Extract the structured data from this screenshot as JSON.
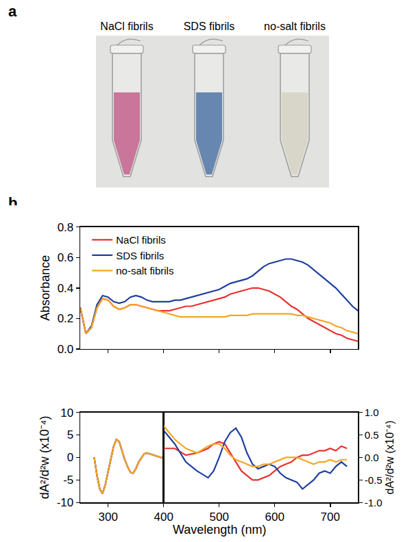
{
  "panel_a": {
    "letter": "a",
    "labels": [
      "NaCl fibrils",
      "SDS fibrils",
      "no-salt fibrils"
    ],
    "colors": [
      "#b2386e",
      "#22518f",
      "#c9c4b3"
    ]
  },
  "panel_b": {
    "letter": "b"
  },
  "chart_data": [
    {
      "type": "line",
      "ylabel": "Absorbance",
      "x": [
        250,
        260,
        270,
        280,
        290,
        300,
        310,
        320,
        330,
        340,
        350,
        360,
        370,
        380,
        390,
        400,
        410,
        420,
        430,
        440,
        450,
        460,
        470,
        480,
        490,
        500,
        510,
        520,
        530,
        540,
        550,
        560,
        570,
        580,
        590,
        600,
        610,
        620,
        630,
        640,
        650,
        660,
        670,
        680,
        690,
        700,
        710,
        720,
        730,
        740,
        750
      ],
      "series": [
        {
          "name": "NaCl fibrils",
          "color": "#e8312f",
          "values": [
            0.27,
            0.1,
            0.14,
            0.27,
            0.33,
            0.32,
            0.28,
            0.26,
            0.27,
            0.29,
            0.29,
            0.28,
            0.27,
            0.26,
            0.25,
            0.25,
            0.25,
            0.26,
            0.27,
            0.28,
            0.28,
            0.29,
            0.3,
            0.31,
            0.32,
            0.33,
            0.34,
            0.36,
            0.37,
            0.38,
            0.39,
            0.4,
            0.4,
            0.39,
            0.38,
            0.36,
            0.34,
            0.31,
            0.28,
            0.26,
            0.23,
            0.2,
            0.18,
            0.16,
            0.14,
            0.12,
            0.1,
            0.09,
            0.07,
            0.06,
            0.05
          ]
        },
        {
          "name": "SDS fibrils",
          "color": "#1f3f9e",
          "values": [
            0.27,
            0.1,
            0.15,
            0.29,
            0.35,
            0.34,
            0.31,
            0.3,
            0.31,
            0.34,
            0.35,
            0.34,
            0.32,
            0.31,
            0.31,
            0.31,
            0.31,
            0.32,
            0.32,
            0.33,
            0.34,
            0.35,
            0.36,
            0.37,
            0.38,
            0.39,
            0.41,
            0.43,
            0.44,
            0.45,
            0.46,
            0.48,
            0.51,
            0.54,
            0.56,
            0.57,
            0.58,
            0.59,
            0.59,
            0.58,
            0.57,
            0.55,
            0.52,
            0.49,
            0.46,
            0.43,
            0.4,
            0.36,
            0.32,
            0.28,
            0.25
          ]
        },
        {
          "name": "no-salt fibrils",
          "color": "#f5a623",
          "values": [
            0.27,
            0.1,
            0.14,
            0.27,
            0.33,
            0.32,
            0.28,
            0.26,
            0.27,
            0.29,
            0.29,
            0.28,
            0.27,
            0.26,
            0.25,
            0.24,
            0.23,
            0.22,
            0.21,
            0.21,
            0.21,
            0.21,
            0.21,
            0.21,
            0.21,
            0.21,
            0.21,
            0.22,
            0.22,
            0.22,
            0.22,
            0.23,
            0.23,
            0.23,
            0.23,
            0.23,
            0.23,
            0.23,
            0.23,
            0.22,
            0.22,
            0.21,
            0.2,
            0.19,
            0.18,
            0.17,
            0.15,
            0.14,
            0.12,
            0.11,
            0.1
          ]
        }
      ],
      "xlim": [
        250,
        750
      ],
      "xticks": [
        300,
        400,
        500,
        600,
        700
      ],
      "ylim": [
        0,
        0.8
      ],
      "yticks": [
        {
          "value": 0,
          "label": "0.0"
        },
        {
          "value": 0.2,
          "label": "0.2"
        },
        {
          "value": 0.4,
          "label": "0.4"
        },
        {
          "value": 0.6,
          "label": "0.6"
        },
        {
          "value": 0.8,
          "label": "0.8"
        }
      ],
      "legend": "upper left",
      "tick_labels": "y"
    },
    {
      "type": "line",
      "ylabel": "dA²/d²w (x10⁻⁴)",
      "x": [
        275,
        280,
        285,
        290,
        295,
        300,
        305,
        310,
        315,
        320,
        325,
        330,
        335,
        340,
        345,
        350,
        355,
        360,
        365,
        370,
        375,
        380,
        385,
        390,
        395,
        400
      ],
      "series": [
        {
          "color": "#e8312f",
          "values": [
            0,
            -4,
            -7,
            -8,
            -6,
            -3,
            0,
            2.5,
            4,
            3.5,
            1.5,
            -0.5,
            -2,
            -3.3,
            -3.5,
            -2.5,
            -1,
            0,
            0.8,
            1,
            0.8,
            0.5,
            0.3,
            0.2,
            0,
            0
          ]
        },
        {
          "color": "#1f3f9e",
          "values": [
            0,
            -4,
            -7,
            -8,
            -6,
            -3,
            0,
            2.5,
            4,
            3.5,
            1.5,
            -0.5,
            -2,
            -3.3,
            -3.5,
            -2.5,
            -1,
            0,
            0.8,
            1,
            0.8,
            0.5,
            0.3,
            0.2,
            0,
            0
          ]
        },
        {
          "color": "#f5a623",
          "values": [
            0,
            -4,
            -7,
            -8,
            -6,
            -3,
            0,
            2.5,
            4,
            3.5,
            1.5,
            -0.5,
            -2,
            -3.3,
            -3.5,
            -2.5,
            -1,
            0,
            0.8,
            1,
            0.8,
            0.5,
            0.3,
            0.2,
            0,
            0
          ]
        }
      ],
      "xlim": [
        250,
        400
      ],
      "xticks": [
        300
      ],
      "ylim": [
        -10,
        10
      ],
      "yticks": [
        -10,
        -5,
        0,
        5,
        10
      ]
    },
    {
      "type": "line",
      "xlabel": "Wavelength (nm)",
      "ylabel": "dA²/d²w (x10⁻⁴)",
      "x": [
        400,
        420,
        440,
        460,
        480,
        490,
        500,
        510,
        520,
        530,
        540,
        550,
        560,
        570,
        580,
        590,
        600,
        610,
        620,
        630,
        640,
        650,
        660,
        670,
        680,
        690,
        700,
        710,
        720,
        730
      ],
      "series": [
        {
          "color": "#e8312f",
          "axis": "y2",
          "values": [
            0.2,
            0.2,
            0.05,
            0.1,
            0.2,
            0.3,
            0.35,
            0.3,
            0.1,
            -0.1,
            -0.3,
            -0.4,
            -0.5,
            -0.5,
            -0.45,
            -0.4,
            -0.3,
            -0.2,
            -0.15,
            -0.1,
            0,
            0.05,
            0.05,
            0.1,
            0.15,
            0.15,
            0.2,
            0.15,
            0.25,
            0.2
          ]
        },
        {
          "color": "#1f3f9e",
          "axis": "y2",
          "values": [
            0.6,
            0.3,
            -0.1,
            -0.3,
            -0.45,
            -0.3,
            0,
            0.35,
            0.55,
            0.65,
            0.45,
            0.1,
            -0.15,
            -0.25,
            -0.2,
            -0.15,
            -0.2,
            -0.35,
            -0.45,
            -0.5,
            -0.55,
            -0.7,
            -0.6,
            -0.5,
            -0.35,
            -0.3,
            -0.35,
            -0.2,
            -0.1,
            -0.2
          ]
        },
        {
          "color": "#f5a623",
          "axis": "y2",
          "values": [
            0.7,
            0.4,
            0.2,
            0.1,
            0.25,
            0.3,
            0.3,
            0.2,
            0.05,
            -0.05,
            -0.1,
            -0.15,
            -0.2,
            -0.2,
            -0.15,
            -0.15,
            -0.1,
            -0.05,
            0,
            0,
            0,
            -0.05,
            -0.1,
            -0.15,
            -0.1,
            -0.1,
            -0.05,
            -0.1,
            -0.05,
            -0.05
          ]
        }
      ],
      "xlim": [
        400,
        750
      ],
      "xticks": [
        400,
        500,
        600,
        700
      ],
      "y2lim": [
        -1,
        1
      ],
      "y2ticks": [
        {
          "value": -1,
          "label": "-1.0"
        },
        {
          "value": -0.5,
          "label": "-0.5"
        },
        {
          "value": 0,
          "label": "0.0"
        },
        {
          "value": 0.5,
          "label": "0.5"
        },
        {
          "value": 1,
          "label": "1.0"
        }
      ]
    }
  ]
}
